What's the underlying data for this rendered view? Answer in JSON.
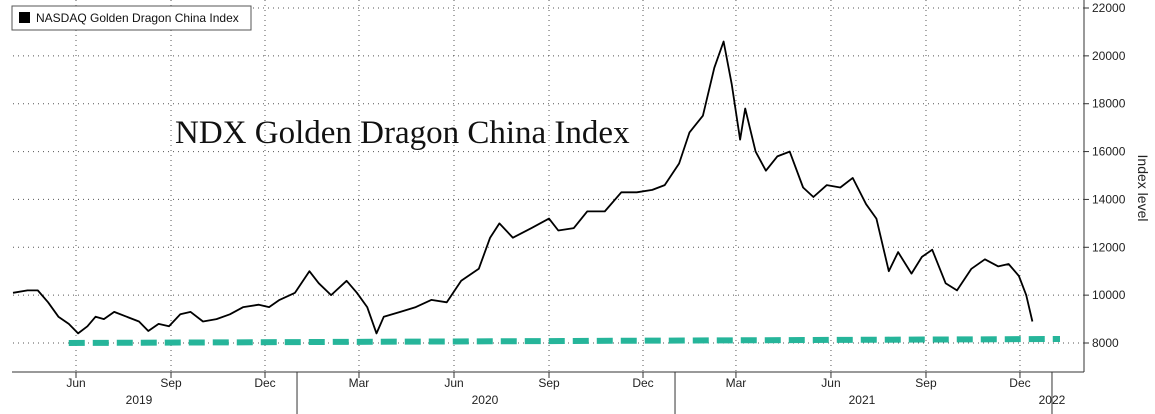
{
  "chart_data": {
    "type": "line",
    "title": "NDX Golden Dragon China Index",
    "ylabel": "Index level",
    "ylim": [
      7000,
      22000
    ],
    "yticks": [
      8000,
      10000,
      12000,
      14000,
      16000,
      18000,
      20000,
      22000
    ],
    "grid": true,
    "legend": {
      "position": "top-left",
      "label": "NASDAQ Golden Dragon China Index",
      "color": "#000000"
    },
    "x_month_labels": [
      {
        "label": "Jun",
        "date": "2019-06"
      },
      {
        "label": "Sep",
        "date": "2019-09"
      },
      {
        "label": "Dec",
        "date": "2019-12"
      },
      {
        "label": "Mar",
        "date": "2020-03"
      },
      {
        "label": "Jun",
        "date": "2020-06"
      },
      {
        "label": "Sep",
        "date": "2020-09"
      },
      {
        "label": "Dec",
        "date": "2020-12"
      },
      {
        "label": "Mar",
        "date": "2021-03"
      },
      {
        "label": "Jun",
        "date": "2021-06"
      },
      {
        "label": "Sep",
        "date": "2021-09"
      },
      {
        "label": "Dec",
        "date": "2021-12"
      }
    ],
    "x_year_labels": [
      {
        "label": "2019",
        "date": "2019-08"
      },
      {
        "label": "2020",
        "date": "2020-07"
      },
      {
        "label": "2021",
        "date": "2021-07"
      },
      {
        "label": "2022",
        "date": "2022-01"
      }
    ],
    "series": [
      {
        "name": "NASDAQ Golden Dragon China Index",
        "color": "#000000",
        "points": [
          [
            "2019-04-01",
            10100
          ],
          [
            "2019-04-15",
            10200
          ],
          [
            "2019-04-25",
            10200
          ],
          [
            "2019-05-05",
            9700
          ],
          [
            "2019-05-15",
            9100
          ],
          [
            "2019-05-25",
            8800
          ],
          [
            "2019-06-03",
            8400
          ],
          [
            "2019-06-12",
            8700
          ],
          [
            "2019-06-20",
            9100
          ],
          [
            "2019-06-28",
            9000
          ],
          [
            "2019-07-08",
            9300
          ],
          [
            "2019-07-20",
            9100
          ],
          [
            "2019-08-01",
            8900
          ],
          [
            "2019-08-10",
            8500
          ],
          [
            "2019-08-20",
            8800
          ],
          [
            "2019-08-30",
            8700
          ],
          [
            "2019-09-10",
            9200
          ],
          [
            "2019-09-20",
            9300
          ],
          [
            "2019-10-02",
            8900
          ],
          [
            "2019-10-15",
            9000
          ],
          [
            "2019-10-28",
            9200
          ],
          [
            "2019-11-10",
            9500
          ],
          [
            "2019-11-25",
            9600
          ],
          [
            "2019-12-05",
            9500
          ],
          [
            "2019-12-15",
            9800
          ],
          [
            "2019-12-30",
            10100
          ],
          [
            "2020-01-13",
            11000
          ],
          [
            "2020-01-22",
            10500
          ],
          [
            "2020-02-03",
            10000
          ],
          [
            "2020-02-18",
            10600
          ],
          [
            "2020-02-28",
            10100
          ],
          [
            "2020-03-09",
            9500
          ],
          [
            "2020-03-18",
            8400
          ],
          [
            "2020-03-25",
            9100
          ],
          [
            "2020-04-10",
            9300
          ],
          [
            "2020-04-25",
            9500
          ],
          [
            "2020-05-10",
            9800
          ],
          [
            "2020-05-25",
            9700
          ],
          [
            "2020-06-08",
            10600
          ],
          [
            "2020-06-25",
            11100
          ],
          [
            "2020-07-06",
            12400
          ],
          [
            "2020-07-15",
            13000
          ],
          [
            "2020-07-28",
            12400
          ],
          [
            "2020-08-15",
            12800
          ],
          [
            "2020-09-01",
            13200
          ],
          [
            "2020-09-10",
            12700
          ],
          [
            "2020-09-25",
            12800
          ],
          [
            "2020-10-08",
            13500
          ],
          [
            "2020-10-25",
            13500
          ],
          [
            "2020-11-10",
            14300
          ],
          [
            "2020-11-25",
            14300
          ],
          [
            "2020-12-10",
            14400
          ],
          [
            "2020-12-22",
            14600
          ],
          [
            "2021-01-05",
            15500
          ],
          [
            "2021-01-15",
            16800
          ],
          [
            "2021-01-28",
            17500
          ],
          [
            "2021-02-08",
            19500
          ],
          [
            "2021-02-17",
            20600
          ],
          [
            "2021-02-25",
            18800
          ],
          [
            "2021-03-05",
            16500
          ],
          [
            "2021-03-10",
            17800
          ],
          [
            "2021-03-20",
            16000
          ],
          [
            "2021-03-30",
            15200
          ],
          [
            "2021-04-10",
            15800
          ],
          [
            "2021-04-22",
            16000
          ],
          [
            "2021-05-05",
            14500
          ],
          [
            "2021-05-15",
            14100
          ],
          [
            "2021-05-28",
            14600
          ],
          [
            "2021-06-10",
            14500
          ],
          [
            "2021-06-22",
            14900
          ],
          [
            "2021-07-05",
            13800
          ],
          [
            "2021-07-15",
            13200
          ],
          [
            "2021-07-27",
            11000
          ],
          [
            "2021-08-05",
            11800
          ],
          [
            "2021-08-18",
            10900
          ],
          [
            "2021-08-28",
            11600
          ],
          [
            "2021-09-07",
            11900
          ],
          [
            "2021-09-20",
            10500
          ],
          [
            "2021-10-01",
            10200
          ],
          [
            "2021-10-15",
            11100
          ],
          [
            "2021-10-28",
            11500
          ],
          [
            "2021-11-10",
            11200
          ],
          [
            "2021-11-20",
            11300
          ],
          [
            "2021-11-30",
            10800
          ],
          [
            "2021-12-07",
            10000
          ],
          [
            "2021-12-13",
            8900
          ]
        ]
      }
    ],
    "reference_line": {
      "value": 8000,
      "start": "2019-05-25",
      "end": "2022-01-31",
      "color": "#26b59a",
      "style": "dashed"
    }
  }
}
